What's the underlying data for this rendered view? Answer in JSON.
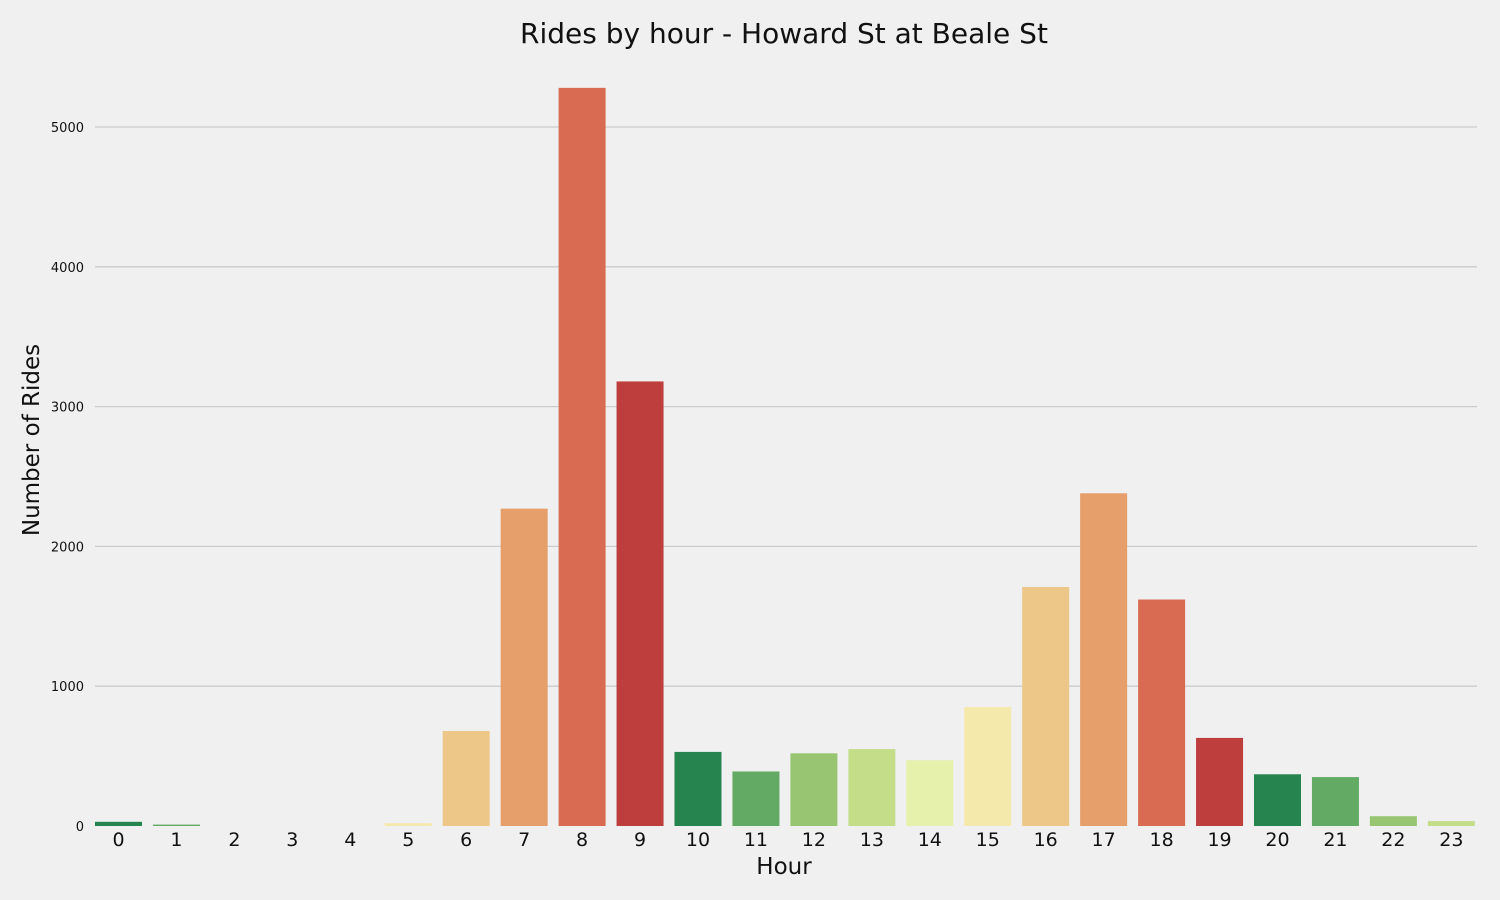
{
  "chart_data": {
    "type": "bar",
    "title": "Rides by hour - Howard St at Beale St",
    "xlabel": "Hour",
    "ylabel": "Number of Rides",
    "categories": [
      "0",
      "1",
      "2",
      "3",
      "4",
      "5",
      "6",
      "7",
      "8",
      "9",
      "10",
      "11",
      "12",
      "13",
      "14",
      "15",
      "16",
      "17",
      "18",
      "19",
      "20",
      "21",
      "22",
      "23"
    ],
    "values": [
      30,
      10,
      0,
      0,
      0,
      20,
      680,
      2270,
      5280,
      3180,
      530,
      390,
      520,
      550,
      470,
      850,
      1710,
      2380,
      1620,
      630,
      370,
      350,
      70,
      35
    ],
    "ylim": [
      0,
      5500
    ],
    "yticks": [
      0,
      1000,
      2000,
      3000,
      4000,
      5000
    ],
    "grid": "horizontal",
    "colors": [
      "#26844f",
      "#63aa64",
      "#97c571",
      "#c4dd88",
      "#e6f1ab",
      "#f5e8ab",
      "#edc787",
      "#e69e6b",
      "#d86b52",
      "#bd3e3c",
      "#26844f",
      "#63aa64",
      "#97c571",
      "#c4dd88",
      "#e6f1ab",
      "#f5e8ab",
      "#edc787",
      "#e69e6b",
      "#d86b52",
      "#bd3e3c",
      "#26844f",
      "#63aa64",
      "#97c571",
      "#c4dd88"
    ],
    "background": "#f0f0f0"
  }
}
